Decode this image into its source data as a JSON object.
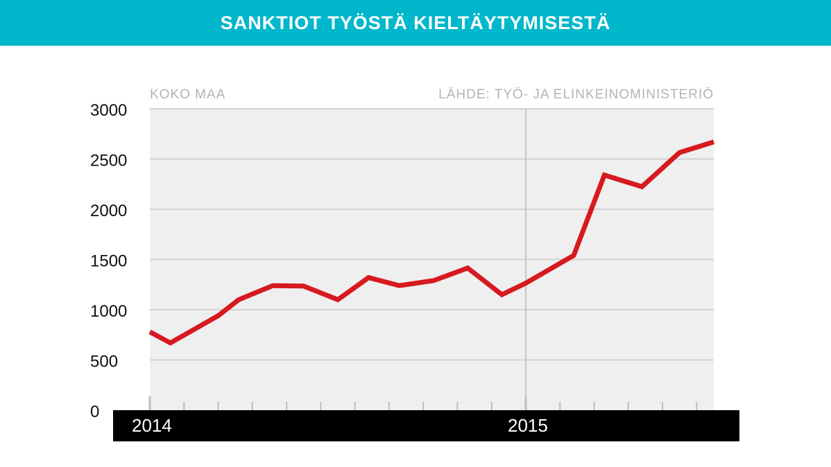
{
  "header": {
    "title": "SANKTIOT TYÖSTÄ KIELTÄYTYMISESTÄ"
  },
  "colors": {
    "header_bg": "#00b7cc",
    "plot_bg": "#efefef",
    "line": "#d71920",
    "axis_bar": "#000000"
  },
  "chart_data": {
    "type": "line",
    "title": "SANKTIOT TYÖSTÄ KIELTÄYTYMISESTÄ",
    "subtitle_left": "KOKO MAA",
    "source": "LÄHDE: TYÖ- JA ELINKEINOMINISTERIÖ",
    "xlabel": "",
    "ylabel": "",
    "year_labels": [
      {
        "label": "2014",
        "x": 0
      },
      {
        "label": "2015",
        "x": 11
      }
    ],
    "x": [
      0,
      0.6,
      2,
      2.6,
      3.6,
      4.5,
      5.5,
      6.4,
      7.3,
      8.3,
      9.3,
      10.3,
      11,
      12.4,
      13.3,
      14.4,
      15.5,
      16.5
    ],
    "values": [
      780,
      670,
      940,
      1100,
      1240,
      1235,
      1100,
      1320,
      1240,
      1290,
      1415,
      1150,
      1265,
      1540,
      2340,
      2225,
      2565,
      2670
    ],
    "ylim": [
      0,
      3000
    ],
    "xlim": [
      0,
      16.5
    ],
    "yticks": [
      0,
      500,
      1000,
      1500,
      2000,
      2500,
      3000
    ],
    "ytick_labels": [
      "0",
      "500",
      "1000",
      "1500",
      "2000",
      "2500",
      "3000"
    ],
    "xticks_minor": [
      1,
      2,
      3,
      4,
      5,
      6,
      7,
      8,
      9,
      10,
      12,
      13,
      14,
      15,
      16
    ],
    "xticks_major": [
      0,
      11
    ],
    "grid": true,
    "legend": "none"
  }
}
